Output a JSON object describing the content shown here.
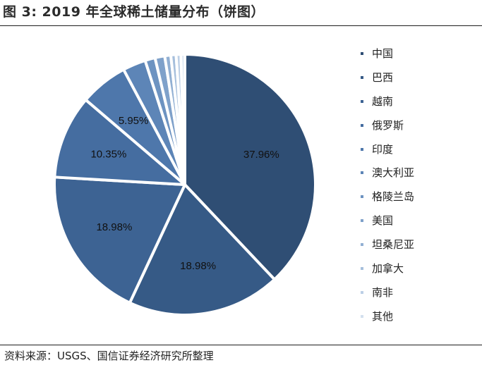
{
  "title": "图 3:  2019 年全球稀土储量分布（饼图）",
  "source": "资料来源：USGS、国信证券经济研究所整理",
  "chart_data": {
    "type": "pie",
    "title": "",
    "legend_position": "right",
    "slices": [
      {
        "name": "中国",
        "value": 37.96,
        "label": "37.96%",
        "color": "#2f4e74"
      },
      {
        "name": "巴西",
        "value": 18.98,
        "label": "18.98%",
        "color": "#365a86"
      },
      {
        "name": "越南",
        "value": 18.98,
        "label": "18.98%",
        "color": "#3d6393"
      },
      {
        "name": "俄罗斯",
        "value": 10.35,
        "label": "10.35%",
        "color": "#456da0"
      },
      {
        "name": "印度",
        "value": 5.95,
        "label": "5.95%",
        "color": "#4e77ab"
      },
      {
        "name": "澳大利亚",
        "value": 2.85,
        "label": "",
        "color": "#5d85b7"
      },
      {
        "name": "格陵兰岛",
        "value": 1.25,
        "label": "",
        "color": "#6d93c1"
      },
      {
        "name": "美国",
        "value": 1.2,
        "label": "",
        "color": "#7fa1ca"
      },
      {
        "name": "坦桑尼亚",
        "value": 0.75,
        "label": "",
        "color": "#92b0d3"
      },
      {
        "name": "加拿大",
        "value": 0.65,
        "label": "",
        "color": "#a6bfdc"
      },
      {
        "name": "南非",
        "value": 0.6,
        "label": "",
        "color": "#bccfe6"
      },
      {
        "name": "其他",
        "value": 0.48,
        "label": "",
        "color": "#d3e0ef"
      }
    ]
  }
}
